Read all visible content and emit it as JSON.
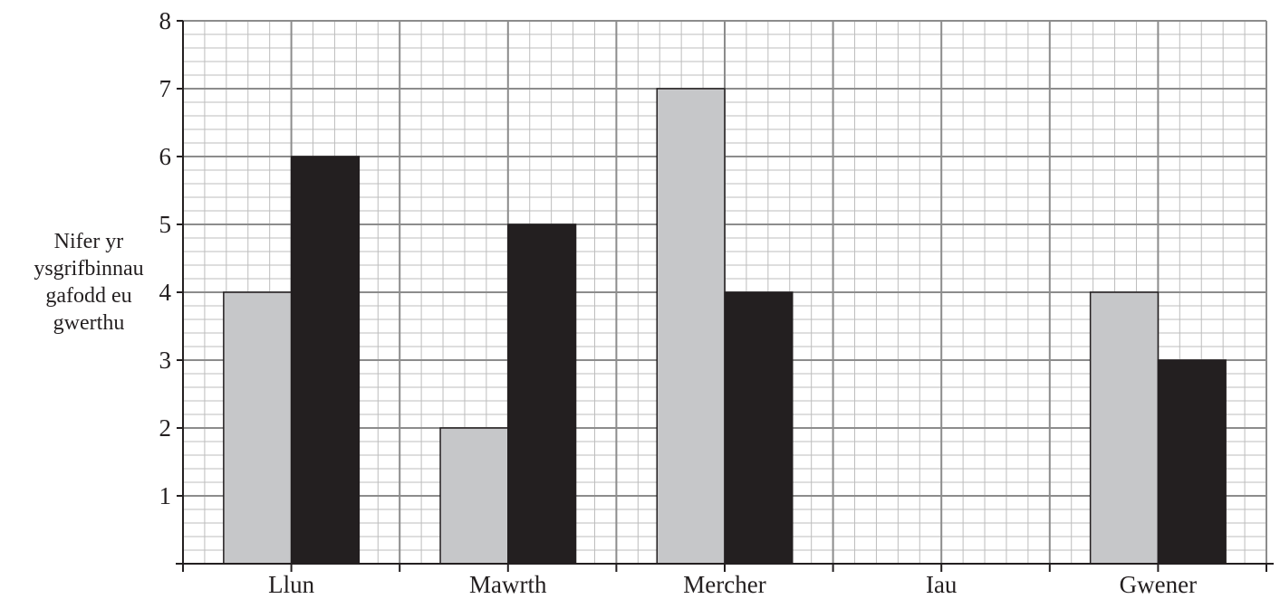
{
  "chart_data": {
    "type": "bar",
    "title": "",
    "xlabel": "",
    "ylabel_lines": [
      "Nifer yr",
      "ysgrifbinnau",
      "gafodd eu",
      "gwerthu"
    ],
    "categories": [
      "Llun",
      "Mawrth",
      "Mercher",
      "Iau",
      "Gwener"
    ],
    "series": [
      {
        "color": "#c6c7c9",
        "values": [
          4,
          2,
          7,
          0,
          4
        ]
      },
      {
        "color": "#231f20",
        "values": [
          6,
          5,
          4,
          0,
          3
        ]
      }
    ],
    "ylim": [
      0,
      8
    ],
    "yticks": [
      1,
      2,
      3,
      4,
      5,
      6,
      7,
      8
    ],
    "grid": true,
    "minor_divisions": 5,
    "legend": "none"
  }
}
